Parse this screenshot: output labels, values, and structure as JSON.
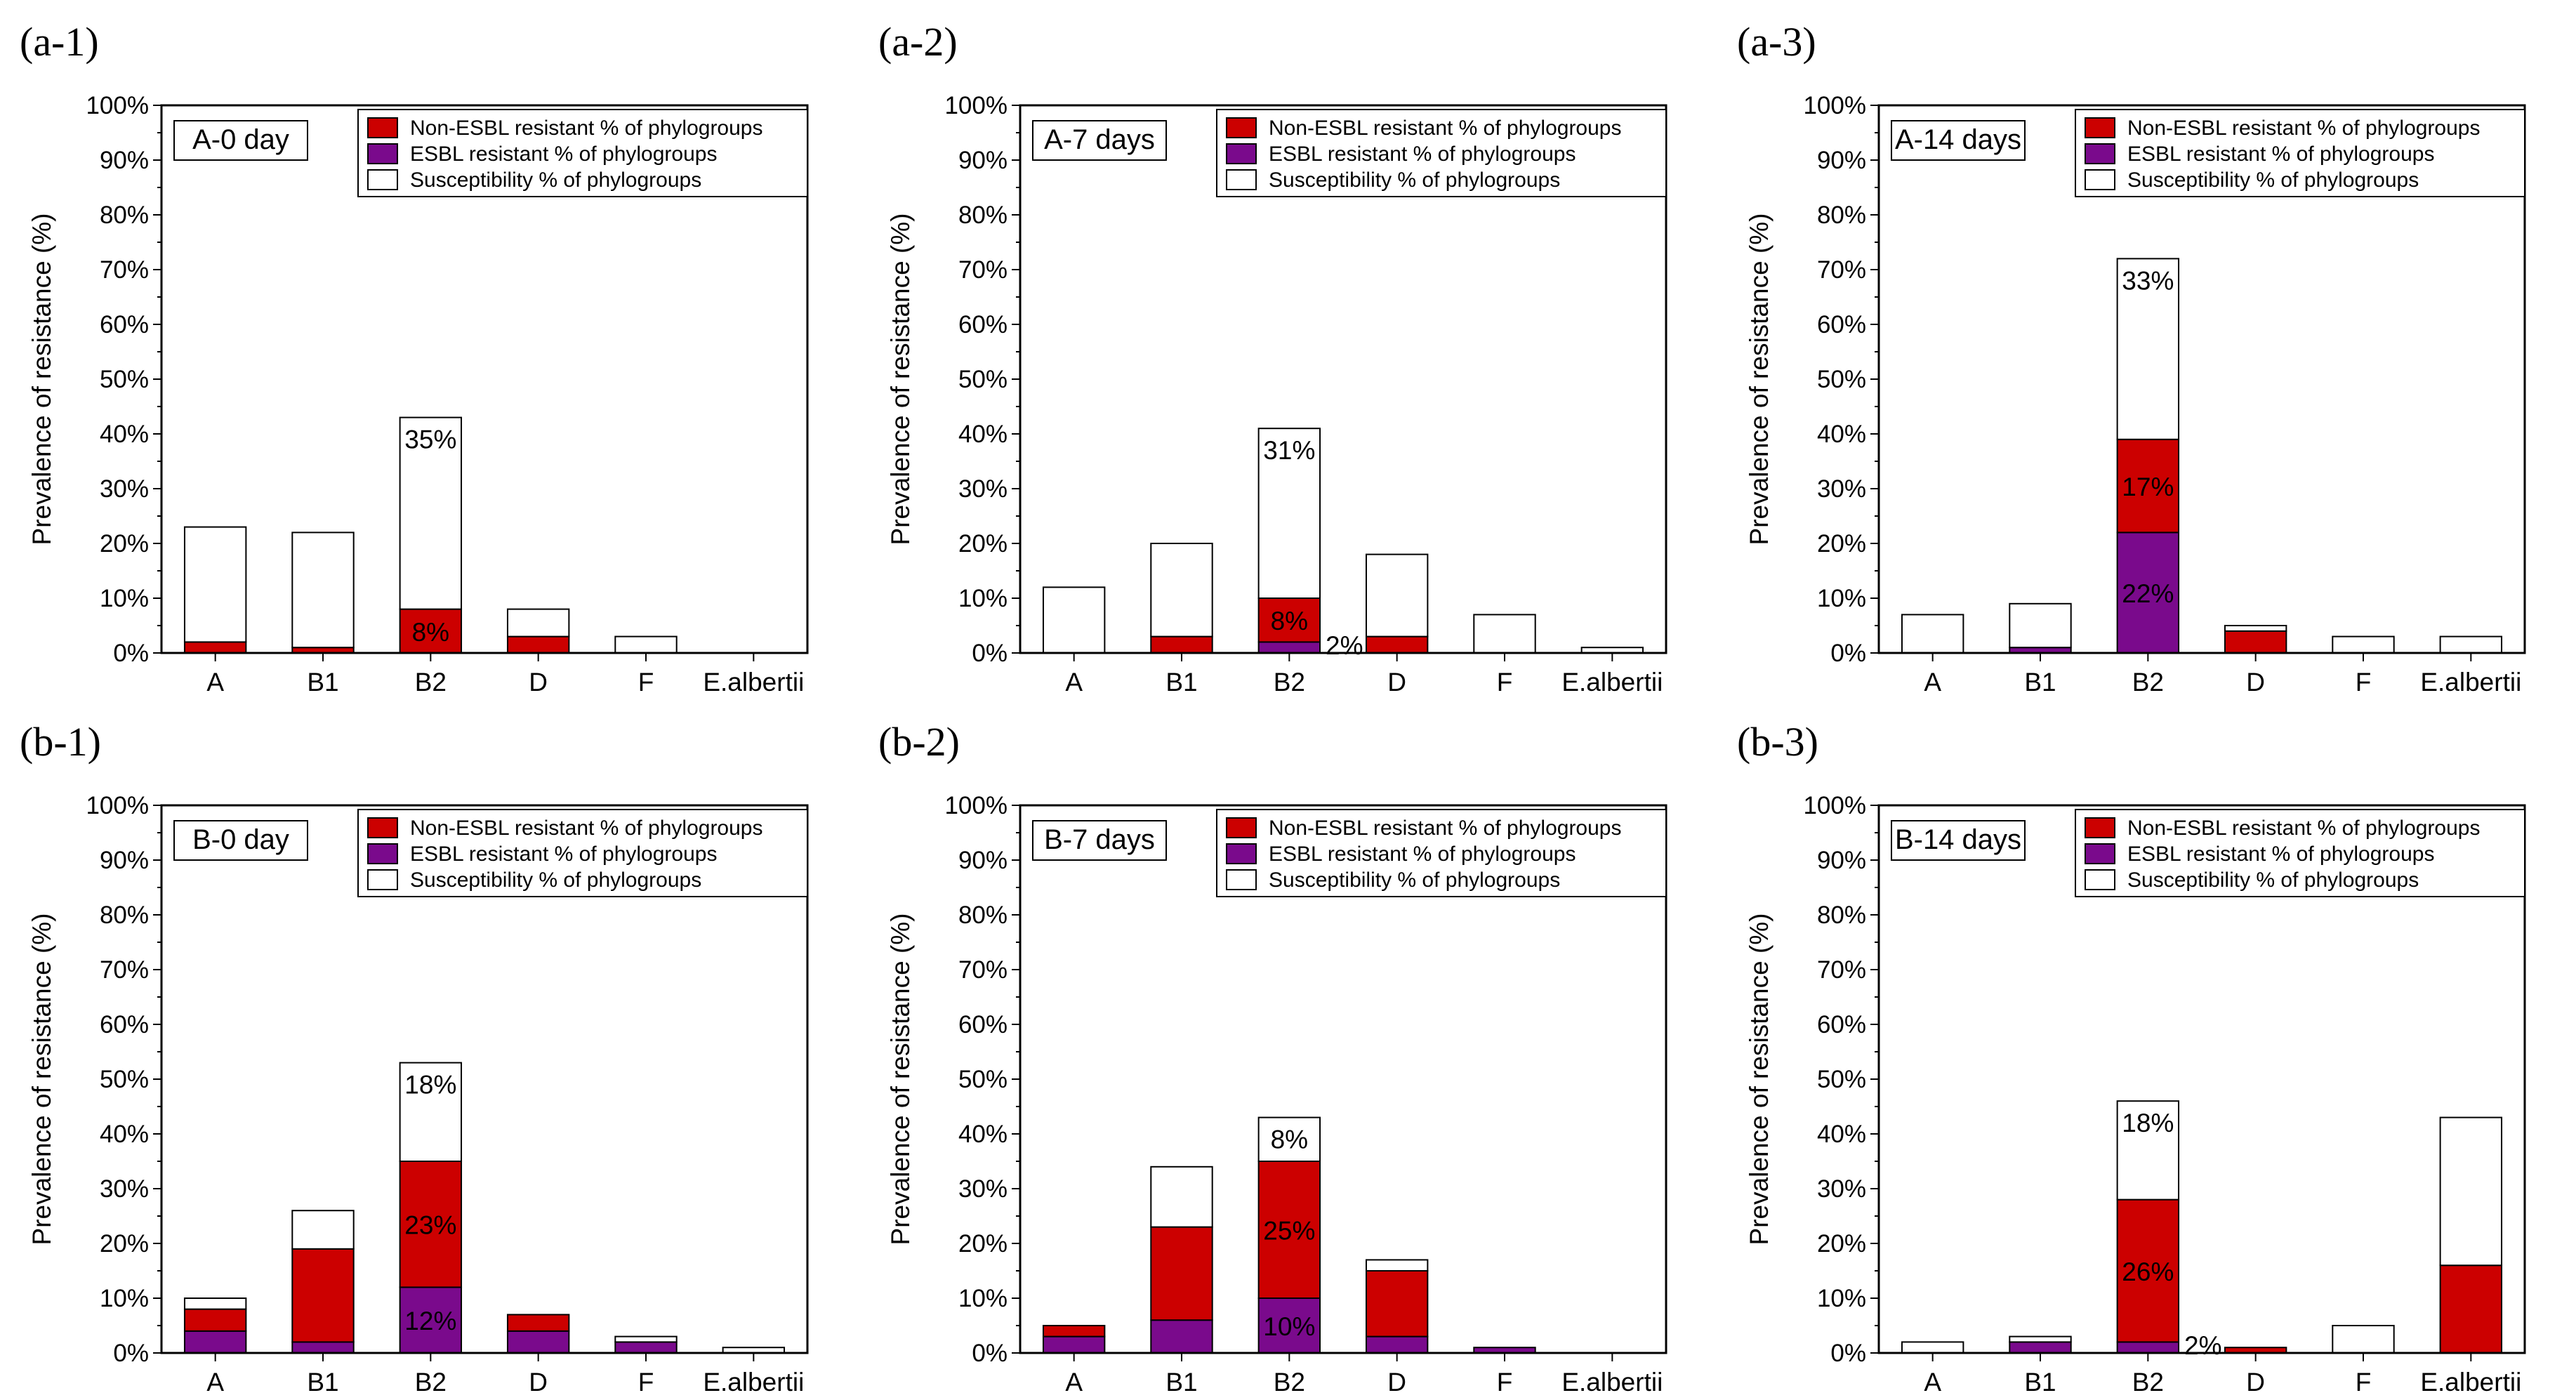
{
  "figure": {
    "legend_entries": [
      "Non-ESBL resistant  % of phylogroups",
      "ESBL resistant % of phylogroups",
      "Susceptibility % of phylogroups"
    ],
    "y_axis_label": "Prevalence of resistance (%)",
    "colors": {
      "non_esbl": "#cc0000",
      "esbl": "#7a0a8c",
      "susceptible": "#ffffff",
      "axis": "#000000"
    }
  },
  "chart_data": [
    {
      "panel_label": "(a-1)",
      "title": "A-0 day",
      "type": "bar",
      "stacked": true,
      "categories": [
        "A",
        "B1",
        "B2",
        "D",
        "F",
        "E.albertii"
      ],
      "ylabel": "Prevalence of resistance (%)",
      "ylim": [
        0,
        100
      ],
      "yticks": [
        "0%",
        "10%",
        "20%",
        "30%",
        "40%",
        "50%",
        "60%",
        "70%",
        "80%",
        "90%",
        "100%"
      ],
      "series": [
        {
          "name": "ESBL resistant % of phylogroups",
          "values": [
            0,
            0,
            0,
            0,
            0,
            0
          ],
          "labels": [
            "",
            "",
            "",
            "",
            "",
            ""
          ]
        },
        {
          "name": "Non-ESBL resistant  % of phylogroups",
          "values": [
            2,
            1,
            8,
            3,
            0,
            0
          ],
          "labels": [
            "",
            "",
            "8%",
            "",
            "",
            ""
          ]
        },
        {
          "name": "Susceptibility % of phylogroups",
          "values": [
            21,
            21,
            35,
            5,
            3,
            0
          ],
          "labels": [
            "",
            "",
            "35%",
            "",
            "",
            ""
          ]
        }
      ],
      "legend_position": "top-right"
    },
    {
      "panel_label": "(a-2)",
      "title": "A-7 days",
      "type": "bar",
      "stacked": true,
      "categories": [
        "A",
        "B1",
        "B2",
        "D",
        "F",
        "E.albertii"
      ],
      "ylabel": "Prevalence of resistance (%)",
      "ylim": [
        0,
        100
      ],
      "yticks": [
        "0%",
        "10%",
        "20%",
        "30%",
        "40%",
        "50%",
        "60%",
        "70%",
        "80%",
        "90%",
        "100%"
      ],
      "series": [
        {
          "name": "ESBL resistant % of phylogroups",
          "values": [
            0,
            0,
            2,
            0,
            0,
            0
          ],
          "labels": [
            "",
            "",
            "2%",
            "",
            "",
            ""
          ]
        },
        {
          "name": "Non-ESBL resistant  % of phylogroups",
          "values": [
            0,
            3,
            8,
            3,
            0,
            0
          ],
          "labels": [
            "",
            "",
            "8%",
            "",
            "",
            ""
          ]
        },
        {
          "name": "Susceptibility % of phylogroups",
          "values": [
            12,
            17,
            31,
            15,
            7,
            1
          ],
          "labels": [
            "",
            "",
            "31%",
            "",
            "",
            ""
          ]
        }
      ],
      "legend_position": "top-right"
    },
    {
      "panel_label": "(a-3)",
      "title": "A-14 days",
      "type": "bar",
      "stacked": true,
      "categories": [
        "A",
        "B1",
        "B2",
        "D",
        "F",
        "E.albertii"
      ],
      "ylabel": "Prevalence of resistance (%)",
      "ylim": [
        0,
        100
      ],
      "yticks": [
        "0%",
        "10%",
        "20%",
        "30%",
        "40%",
        "50%",
        "60%",
        "70%",
        "80%",
        "90%",
        "100%"
      ],
      "series": [
        {
          "name": "ESBL resistant % of phylogroups",
          "values": [
            0,
            1,
            22,
            0,
            0,
            0
          ],
          "labels": [
            "",
            "",
            "22%",
            "",
            "",
            ""
          ]
        },
        {
          "name": "Non-ESBL resistant  % of phylogroups",
          "values": [
            0,
            0,
            17,
            4,
            0,
            0
          ],
          "labels": [
            "",
            "",
            "17%",
            "",
            "",
            ""
          ]
        },
        {
          "name": "Susceptibility % of phylogroups",
          "values": [
            7,
            8,
            33,
            1,
            3,
            3
          ],
          "labels": [
            "",
            "",
            "33%",
            "",
            "",
            ""
          ]
        }
      ],
      "legend_position": "top-right"
    },
    {
      "panel_label": "(b-1)",
      "title": "B-0 day",
      "type": "bar",
      "stacked": true,
      "categories": [
        "A",
        "B1",
        "B2",
        "D",
        "F",
        "E.albertii"
      ],
      "ylabel": "Prevalence of resistance (%)",
      "ylim": [
        0,
        100
      ],
      "yticks": [
        "0%",
        "10%",
        "20%",
        "30%",
        "40%",
        "50%",
        "60%",
        "70%",
        "80%",
        "90%",
        "100%"
      ],
      "series": [
        {
          "name": "ESBL resistant % of phylogroups",
          "values": [
            4,
            2,
            12,
            4,
            2,
            0
          ],
          "labels": [
            "",
            "",
            "12%",
            "",
            "",
            ""
          ]
        },
        {
          "name": "Non-ESBL resistant  % of phylogroups",
          "values": [
            4,
            17,
            23,
            3,
            0,
            0
          ],
          "labels": [
            "",
            "",
            "23%",
            "",
            "",
            ""
          ]
        },
        {
          "name": "Susceptibility % of phylogroups",
          "values": [
            2,
            7,
            18,
            0,
            1,
            1
          ],
          "labels": [
            "",
            "",
            "18%",
            "",
            "",
            ""
          ]
        }
      ],
      "legend_position": "top-right"
    },
    {
      "panel_label": "(b-2)",
      "title": "B-7 days",
      "type": "bar",
      "stacked": true,
      "categories": [
        "A",
        "B1",
        "B2",
        "D",
        "F",
        "E.albertii"
      ],
      "ylabel": "Prevalence of resistance (%)",
      "ylim": [
        0,
        100
      ],
      "yticks": [
        "0%",
        "10%",
        "20%",
        "30%",
        "40%",
        "50%",
        "60%",
        "70%",
        "80%",
        "90%",
        "100%"
      ],
      "series": [
        {
          "name": "ESBL resistant % of phylogroups",
          "values": [
            3,
            6,
            10,
            3,
            1,
            0
          ],
          "labels": [
            "",
            "",
            "10%",
            "",
            "",
            ""
          ]
        },
        {
          "name": "Non-ESBL resistant  % of phylogroups",
          "values": [
            2,
            17,
            25,
            12,
            0,
            0
          ],
          "labels": [
            "",
            "",
            "25%",
            "",
            "",
            ""
          ]
        },
        {
          "name": "Susceptibility % of phylogroups",
          "values": [
            0,
            11,
            8,
            2,
            0,
            0
          ],
          "labels": [
            "",
            "",
            "8%",
            "",
            "",
            ""
          ]
        }
      ],
      "legend_position": "top-right"
    },
    {
      "panel_label": "(b-3)",
      "title": "B-14 days",
      "type": "bar",
      "stacked": true,
      "categories": [
        "A",
        "B1",
        "B2",
        "D",
        "F",
        "E.albertii"
      ],
      "ylabel": "Prevalence of resistance (%)",
      "ylim": [
        0,
        100
      ],
      "yticks": [
        "0%",
        "10%",
        "20%",
        "30%",
        "40%",
        "50%",
        "60%",
        "70%",
        "80%",
        "90%",
        "100%"
      ],
      "series": [
        {
          "name": "ESBL resistant % of phylogroups",
          "values": [
            0,
            2,
            2,
            0,
            0,
            0
          ],
          "labels": [
            "",
            "",
            "2%",
            "",
            "",
            ""
          ]
        },
        {
          "name": "Non-ESBL resistant  % of phylogroups",
          "values": [
            0,
            0,
            26,
            1,
            0,
            16
          ],
          "labels": [
            "",
            "",
            "26%",
            "",
            "",
            ""
          ]
        },
        {
          "name": "Susceptibility % of phylogroups",
          "values": [
            2,
            1,
            18,
            0,
            5,
            27
          ],
          "labels": [
            "",
            "",
            "18%",
            "",
            "",
            ""
          ]
        }
      ],
      "legend_position": "top-right"
    }
  ]
}
